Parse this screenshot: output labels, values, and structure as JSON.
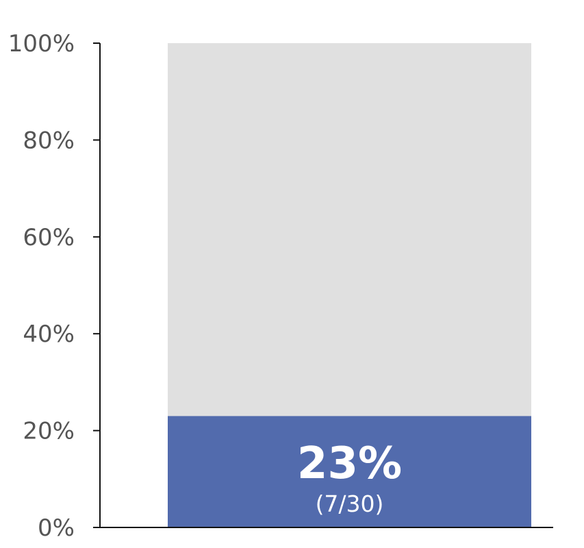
{
  "chart_data": {
    "type": "bar",
    "categories": [
      ""
    ],
    "series": [
      {
        "values": [
          23
        ],
        "count": 7,
        "total": 30
      }
    ],
    "ylim": [
      0,
      100
    ],
    "yticks": [
      0,
      20,
      40,
      60,
      80,
      100
    ],
    "ytick_labels": [
      "0%",
      "20%",
      "40%",
      "60%",
      "80%",
      "100%"
    ],
    "data_labels": {
      "main": "23%",
      "sub": "(7/30)"
    },
    "grid": false,
    "legend": "none",
    "colors": {
      "background_track": "#e0e0e0",
      "filled_bar": "#526bad",
      "axis": "#111111",
      "tick_text": "#555555",
      "data_label": "#ffffff"
    }
  }
}
